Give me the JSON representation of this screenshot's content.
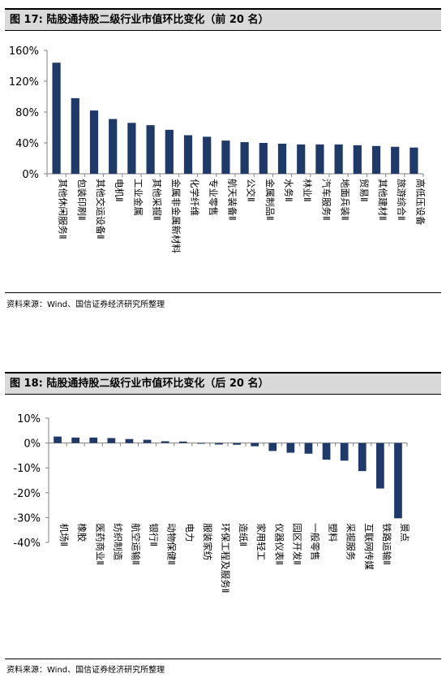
{
  "figure1": {
    "title": "图 17:  陆股通持股二级行业市值环比变化（前 20 名）",
    "source": "资料来源：Wind、国信证券经济研究所整理"
  },
  "figure2": {
    "title": "图 18:  陆股通持股二级行业市值环比变化（后 20 名）",
    "source": "资料来源：Wind、国信证券经济研究所整理"
  },
  "colors": {
    "bar": "#1f3a68",
    "axis": "#7f7f7f"
  },
  "chart_data": [
    {
      "type": "bar",
      "title": "",
      "xlabel": "",
      "ylabel": "",
      "ylim": [
        0,
        160
      ],
      "yticks": [
        0,
        40,
        80,
        120,
        160
      ],
      "tick_suffix": "%",
      "categories": [
        "其他休闲服务Ⅱ",
        "包装印刷Ⅱ",
        "其他交运设备Ⅱ",
        "电机Ⅱ",
        "工业金属",
        "其他采掘Ⅱ",
        "金属非金属新材料",
        "化学纤维",
        "专业零售",
        "航天装备Ⅱ",
        "公交Ⅱ",
        "金属制品Ⅱ",
        "水务Ⅱ",
        "林业Ⅱ",
        "汽车服务Ⅱ",
        "地面兵装Ⅱ",
        "贸易Ⅱ",
        "其他建材Ⅱ",
        "旅游综合Ⅱ",
        "高低压设备"
      ],
      "values": [
        144,
        98,
        82,
        71,
        66,
        63,
        57,
        50,
        48,
        43,
        41,
        40,
        39,
        38,
        38,
        38,
        37,
        36,
        35,
        34
      ]
    },
    {
      "type": "bar",
      "title": "",
      "xlabel": "",
      "ylabel": "",
      "ylim": [
        -40,
        10
      ],
      "yticks": [
        -40,
        -30,
        -20,
        -10,
        0,
        10
      ],
      "tick_suffix": "%",
      "categories": [
        "机场Ⅱ",
        "橡胶",
        "医药商业Ⅱ",
        "纺织制造",
        "航空运输Ⅱ",
        "银行Ⅱ",
        "动物保健Ⅱ",
        "电力",
        "服装家纺",
        "环保工程及服务Ⅱ",
        "造纸Ⅱ",
        "家用轻工",
        "仪器仪表Ⅱ",
        "园区开发Ⅱ",
        "一般零售",
        "塑料",
        "采掘服务",
        "互联网传媒",
        "铁路运输Ⅱ",
        "景点"
      ],
      "values": [
        2.6,
        2.2,
        2.2,
        2.0,
        1.6,
        1.3,
        0.7,
        0.6,
        -0.3,
        -0.6,
        -0.7,
        -1.3,
        -3.2,
        -3.9,
        -4.3,
        -6.7,
        -7.1,
        -11.3,
        -18.3,
        -30.3
      ]
    }
  ]
}
